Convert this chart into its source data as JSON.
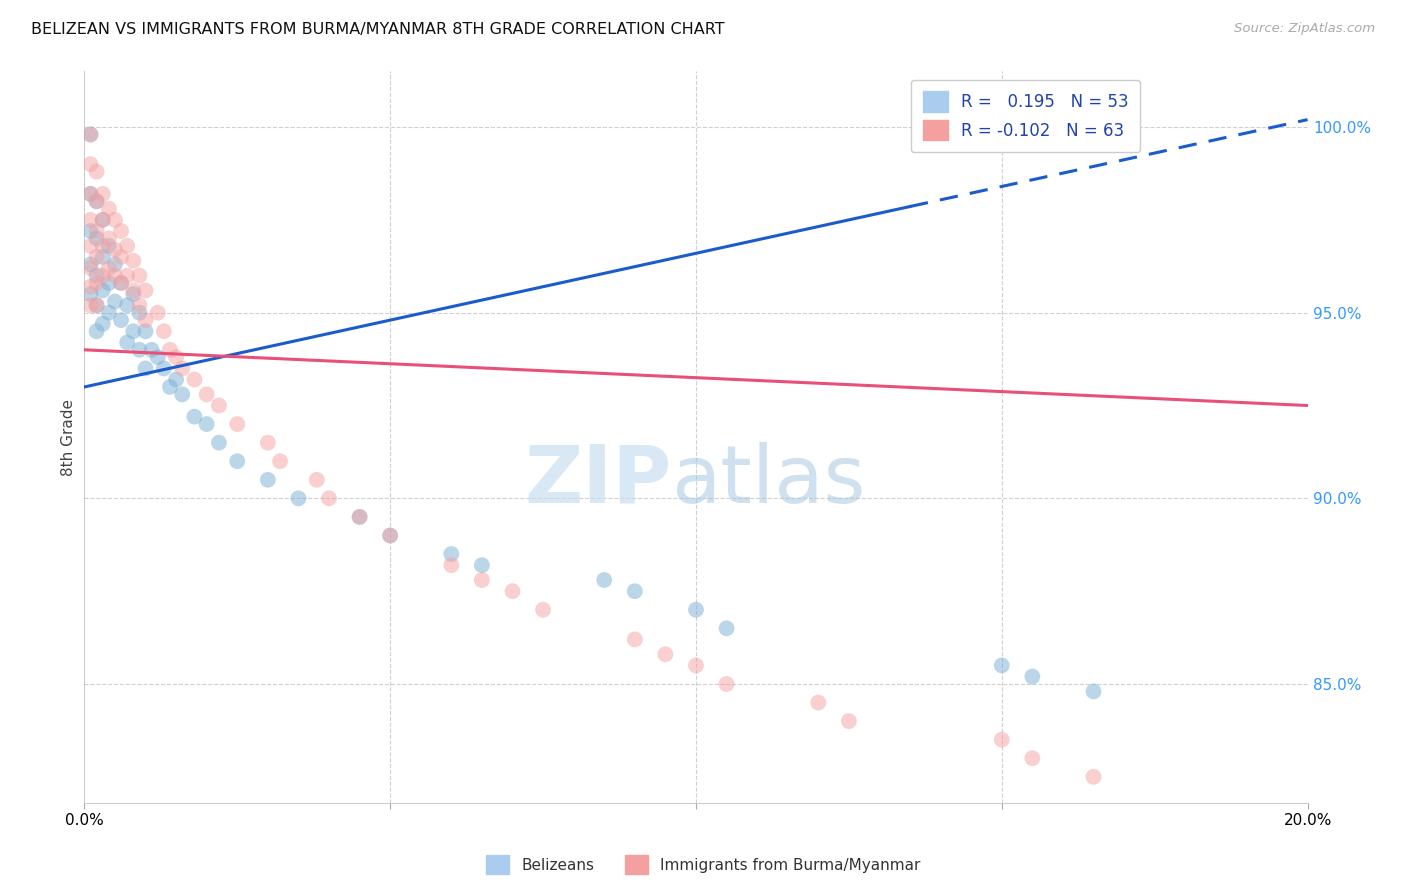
{
  "title": "BELIZEAN VS IMMIGRANTS FROM BURMA/MYANMAR 8TH GRADE CORRELATION CHART",
  "source": "Source: ZipAtlas.com",
  "ylabel": "8th Grade",
  "ylabel_right_ticks": [
    "100.0%",
    "95.0%",
    "90.0%",
    "85.0%"
  ],
  "ylabel_right_values": [
    1.0,
    0.95,
    0.9,
    0.85
  ],
  "xmin": 0.0,
  "xmax": 0.2,
  "ymin": 0.818,
  "ymax": 1.015,
  "belizean_color": "#7bafd4",
  "burma_color": "#f4a0a0",
  "blue_line_color": "#1a5ccc",
  "pink_line_color": "#e8507a",
  "blue_line_y0": 0.93,
  "blue_line_y1": 1.002,
  "blue_line_solid_end": 0.135,
  "pink_line_y0": 0.94,
  "pink_line_y1": 0.925,
  "watermark_zip_color": "#c8dff0",
  "watermark_atlas_color": "#a8c8e0",
  "belizean_x": [
    0.001,
    0.001,
    0.001,
    0.001,
    0.001,
    0.002,
    0.002,
    0.002,
    0.002,
    0.002,
    0.003,
    0.003,
    0.003,
    0.003,
    0.004,
    0.004,
    0.004,
    0.005,
    0.005,
    0.006,
    0.006,
    0.007,
    0.007,
    0.008,
    0.008,
    0.009,
    0.009,
    0.01,
    0.01,
    0.011,
    0.012,
    0.013,
    0.014,
    0.015,
    0.016,
    0.018,
    0.02,
    0.022,
    0.025,
    0.03,
    0.035,
    0.045,
    0.05,
    0.06,
    0.065,
    0.085,
    0.09,
    0.1,
    0.105,
    0.15,
    0.155,
    0.165
  ],
  "belizean_y": [
    0.998,
    0.982,
    0.972,
    0.963,
    0.955,
    0.98,
    0.97,
    0.96,
    0.952,
    0.945,
    0.975,
    0.965,
    0.956,
    0.947,
    0.968,
    0.958,
    0.95,
    0.963,
    0.953,
    0.958,
    0.948,
    0.952,
    0.942,
    0.955,
    0.945,
    0.95,
    0.94,
    0.945,
    0.935,
    0.94,
    0.938,
    0.935,
    0.93,
    0.932,
    0.928,
    0.922,
    0.92,
    0.915,
    0.91,
    0.905,
    0.9,
    0.895,
    0.89,
    0.885,
    0.882,
    0.878,
    0.875,
    0.87,
    0.865,
    0.855,
    0.852,
    0.848
  ],
  "burma_x": [
    0.001,
    0.001,
    0.001,
    0.001,
    0.001,
    0.001,
    0.001,
    0.001,
    0.002,
    0.002,
    0.002,
    0.002,
    0.002,
    0.002,
    0.003,
    0.003,
    0.003,
    0.003,
    0.004,
    0.004,
    0.004,
    0.005,
    0.005,
    0.005,
    0.006,
    0.006,
    0.006,
    0.007,
    0.007,
    0.008,
    0.008,
    0.009,
    0.009,
    0.01,
    0.01,
    0.012,
    0.013,
    0.014,
    0.015,
    0.016,
    0.018,
    0.02,
    0.022,
    0.025,
    0.03,
    0.032,
    0.038,
    0.04,
    0.045,
    0.05,
    0.06,
    0.065,
    0.07,
    0.075,
    0.09,
    0.095,
    0.1,
    0.105,
    0.12,
    0.125,
    0.15,
    0.155,
    0.165
  ],
  "burma_y": [
    0.998,
    0.99,
    0.982,
    0.975,
    0.968,
    0.962,
    0.957,
    0.952,
    0.988,
    0.98,
    0.972,
    0.965,
    0.958,
    0.952,
    0.982,
    0.975,
    0.968,
    0.96,
    0.978,
    0.97,
    0.962,
    0.975,
    0.967,
    0.96,
    0.972,
    0.965,
    0.958,
    0.968,
    0.96,
    0.964,
    0.956,
    0.96,
    0.952,
    0.956,
    0.948,
    0.95,
    0.945,
    0.94,
    0.938,
    0.935,
    0.932,
    0.928,
    0.925,
    0.92,
    0.915,
    0.91,
    0.905,
    0.9,
    0.895,
    0.89,
    0.882,
    0.878,
    0.875,
    0.87,
    0.862,
    0.858,
    0.855,
    0.85,
    0.845,
    0.84,
    0.835,
    0.83,
    0.825
  ]
}
